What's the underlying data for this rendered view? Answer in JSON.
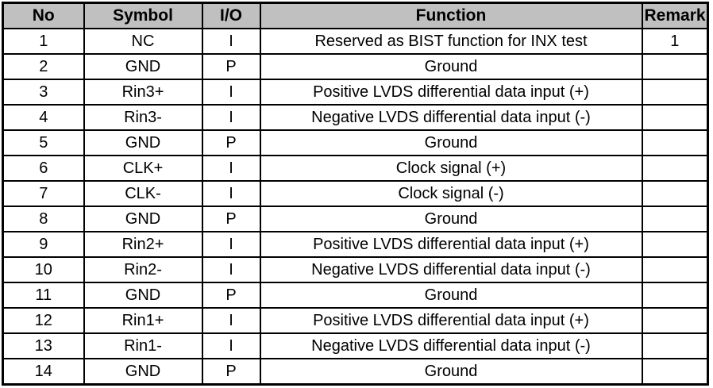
{
  "table": {
    "name": "pin-definition-table",
    "headers": [
      "No",
      "Symbol",
      "I/O",
      "Function",
      "Remark"
    ],
    "rows": [
      [
        "1",
        "NC",
        "I",
        "Reserved as BIST function for INX test",
        "1"
      ],
      [
        "2",
        "GND",
        "P",
        "Ground",
        ""
      ],
      [
        "3",
        "Rin3+",
        "I",
        "Positive LVDS differential data input (+)",
        ""
      ],
      [
        "4",
        "Rin3-",
        "I",
        "Negative LVDS differential data input (-)",
        ""
      ],
      [
        "5",
        "GND",
        "P",
        "Ground",
        ""
      ],
      [
        "6",
        "CLK+",
        "I",
        "Clock signal (+)",
        ""
      ],
      [
        "7",
        "CLK-",
        "I",
        "Clock signal (-)",
        ""
      ],
      [
        "8",
        "GND",
        "P",
        "Ground",
        ""
      ],
      [
        "9",
        "Rin2+",
        "I",
        "Positive LVDS differential data input (+)",
        ""
      ],
      [
        "10",
        "Rin2-",
        "I",
        "Negative LVDS differential data input (-)",
        ""
      ],
      [
        "11",
        "GND",
        "P",
        "Ground",
        ""
      ],
      [
        "12",
        "Rin1+",
        "I",
        "Positive LVDS differential data input (+)",
        ""
      ],
      [
        "13",
        "Rin1-",
        "I",
        "Negative LVDS differential data input (-)",
        ""
      ],
      [
        "14",
        "GND",
        "P",
        "Ground",
        ""
      ]
    ],
    "colors": {
      "header_bg": "#c0c0c0",
      "border": "#000000",
      "text": "#000000",
      "row_bg": "#ffffff"
    }
  }
}
